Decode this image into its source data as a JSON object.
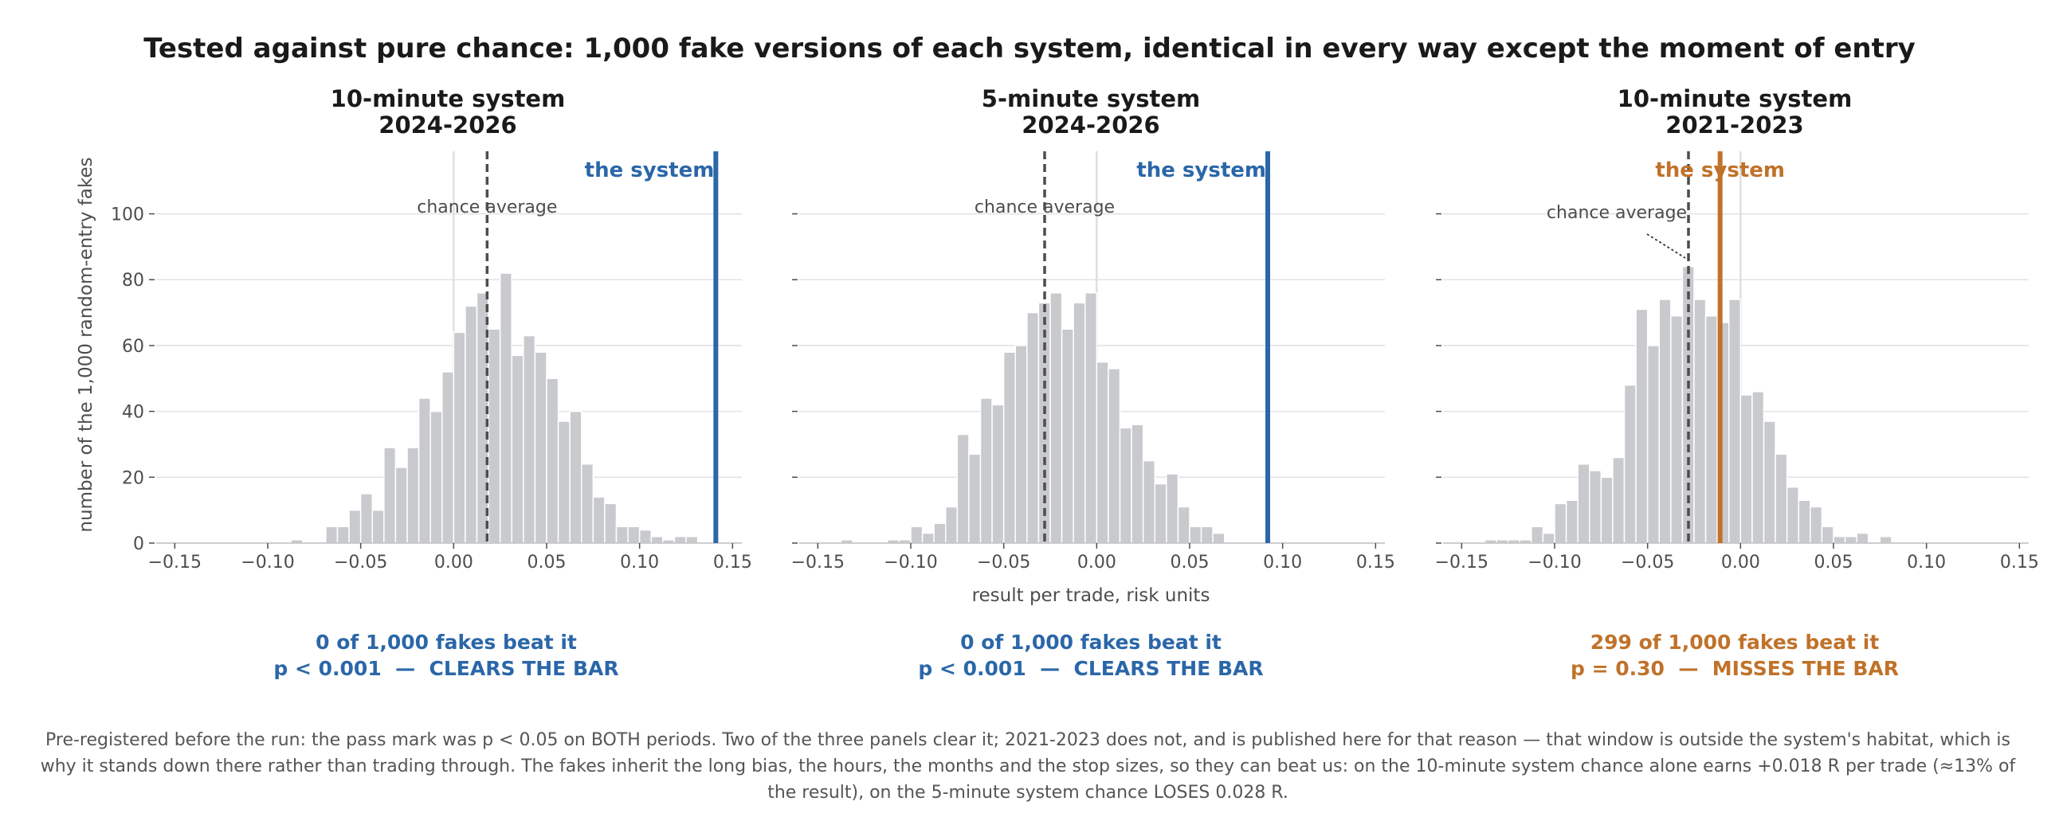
{
  "suptitle": "Tested against pure chance: 1,000 fake versions of each system, identical in every way except the moment of entry",
  "colors": {
    "pass": "#2b67a8",
    "fail": "#c0722a",
    "bars": "#c8cacd",
    "chance_line": "#4d4d4d",
    "zero_line": "#e0e0e0"
  },
  "shared": {
    "ylabel": "number of the 1,000 random-entry fakes",
    "xlabel": "result per trade, risk units",
    "xlim": [
      -0.16,
      0.155
    ],
    "ylim": [
      0,
      119
    ],
    "xticks": [
      -0.15,
      -0.1,
      -0.05,
      0.0,
      0.05,
      0.1,
      0.15
    ],
    "xtick_labels": [
      "−0.15",
      "−0.10",
      "−0.05",
      "0.00",
      "0.05",
      "0.10",
      "0.15"
    ],
    "yticks": [
      0,
      20,
      40,
      60,
      80,
      100
    ],
    "ytick_labels": [
      "0",
      "20",
      "40",
      "60",
      "80",
      "100"
    ],
    "grid": "horizontal",
    "bin_width": 0.00625
  },
  "chart_data": [
    {
      "type": "histogram",
      "title_line1": "10-minute system",
      "title_line2": "2024-2026",
      "bin_starts": [
        -0.1125,
        -0.10625,
        -0.1,
        -0.09375,
        -0.0875,
        -0.08125,
        -0.075,
        -0.06875,
        -0.0625,
        -0.05625,
        -0.05,
        -0.04375,
        -0.0375,
        -0.03125,
        -0.025,
        -0.01875,
        -0.0125,
        -0.00625,
        0.0,
        0.00625,
        0.0125,
        0.01875,
        0.025,
        0.03125,
        0.0375,
        0.04375,
        0.05,
        0.05625,
        0.0625,
        0.06875,
        0.075,
        0.08125,
        0.0875,
        0.09375,
        0.1,
        0.10625,
        0.1125,
        0.11875,
        0.125
      ],
      "counts": [
        0,
        0,
        0,
        0,
        1,
        0,
        0,
        5,
        5,
        10,
        15,
        10,
        29,
        23,
        29,
        44,
        40,
        52,
        64,
        72,
        76,
        65,
        82,
        57,
        63,
        58,
        50,
        37,
        40,
        24,
        14,
        12,
        5,
        5,
        4,
        2,
        1,
        2,
        2
      ],
      "chance_average": 0.018,
      "chance_label": "chance average",
      "system_value": 0.141,
      "system_label": "the system",
      "system_color": "pass",
      "verdict_line1": "0 of 1,000 fakes beat it",
      "verdict_line2": "p < 0.001  —  CLEARS THE BAR",
      "verdict_color": "pass"
    },
    {
      "type": "histogram",
      "title_line1": "5-minute system",
      "title_line2": "2024-2026",
      "bin_starts": [
        -0.14375,
        -0.1375,
        -0.13125,
        -0.125,
        -0.11875,
        -0.1125,
        -0.10625,
        -0.1,
        -0.09375,
        -0.0875,
        -0.08125,
        -0.075,
        -0.06875,
        -0.0625,
        -0.05625,
        -0.05,
        -0.04375,
        -0.0375,
        -0.03125,
        -0.025,
        -0.01875,
        -0.0125,
        -0.00625,
        0.0,
        0.00625,
        0.0125,
        0.01875,
        0.025,
        0.03125,
        0.0375,
        0.04375,
        0.05,
        0.05625,
        0.0625
      ],
      "counts": [
        0,
        1,
        0,
        0,
        0,
        1,
        1,
        5,
        3,
        6,
        11,
        33,
        27,
        44,
        42,
        58,
        60,
        70,
        73,
        76,
        65,
        73,
        76,
        55,
        53,
        35,
        36,
        25,
        18,
        21,
        11,
        5,
        5,
        3
      ],
      "chance_average": -0.028,
      "chance_label": "chance average",
      "system_value": 0.092,
      "system_label": "the system",
      "system_color": "pass",
      "verdict_line1": "0 of 1,000 fakes beat it",
      "verdict_line2": "p < 0.001  —  CLEARS THE BAR",
      "verdict_color": "pass"
    },
    {
      "type": "histogram",
      "title_line1": "10-minute system",
      "title_line2": "2021-2023",
      "bin_starts": [
        -0.14375,
        -0.1375,
        -0.13125,
        -0.125,
        -0.11875,
        -0.1125,
        -0.10625,
        -0.1,
        -0.09375,
        -0.0875,
        -0.08125,
        -0.075,
        -0.06875,
        -0.0625,
        -0.05625,
        -0.05,
        -0.04375,
        -0.0375,
        -0.03125,
        -0.025,
        -0.01875,
        -0.0125,
        -0.00625,
        0.0,
        0.00625,
        0.0125,
        0.01875,
        0.025,
        0.03125,
        0.0375,
        0.04375,
        0.05,
        0.05625,
        0.0625,
        0.06875,
        0.075
      ],
      "counts": [
        0,
        1,
        1,
        1,
        1,
        5,
        3,
        12,
        13,
        24,
        22,
        20,
        26,
        48,
        71,
        60,
        74,
        69,
        84,
        74,
        69,
        67,
        74,
        45,
        46,
        37,
        27,
        17,
        13,
        11,
        5,
        2,
        2,
        3,
        0,
        2
      ],
      "chance_average": -0.028,
      "chance_label": "chance average",
      "system_value": -0.011,
      "system_label": "the system",
      "system_color": "fail",
      "verdict_line1": "299 of 1,000 fakes beat it",
      "verdict_line2": "p = 0.30  —  MISSES THE BAR",
      "verdict_color": "fail"
    }
  ],
  "footnote": [
    "Pre-registered before the run: the pass mark was p < 0.05 on BOTH periods. Two of the three panels clear it; 2021-2023 does not, and is published here for that reason — that window is outside the system's habitat, which is",
    "why it stands down there rather than trading through. The fakes inherit the long bias, the hours, the months and the stop sizes, so they can beat us: on the 10-minute system chance alone earns +0.018 R per trade (≈13% of",
    "the result), on the 5-minute system chance LOSES 0.028 R."
  ]
}
